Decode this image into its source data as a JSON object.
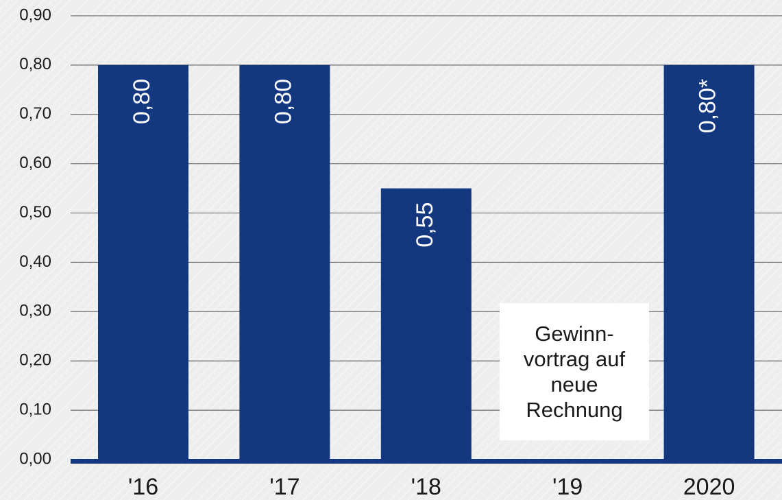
{
  "chart_data": {
    "type": "bar",
    "categories": [
      "'16",
      "'17",
      "'18",
      "'19",
      "2020"
    ],
    "values": [
      0.8,
      0.8,
      0.55,
      0,
      0.8
    ],
    "bar_labels": [
      "0,80",
      "0,80",
      "0,55",
      "",
      "0,80*"
    ],
    "y_ticks": [
      "0,00",
      "0,10",
      "0,20",
      "0,30",
      "0,40",
      "0,50",
      "0,60",
      "0,70",
      "0,80",
      "0,90"
    ],
    "ylim": [
      0,
      0.9
    ],
    "grid": true,
    "bar_color": "#14387f",
    "annotation": "Gewinn-\nvortrag auf\nneue\nRechnung"
  }
}
